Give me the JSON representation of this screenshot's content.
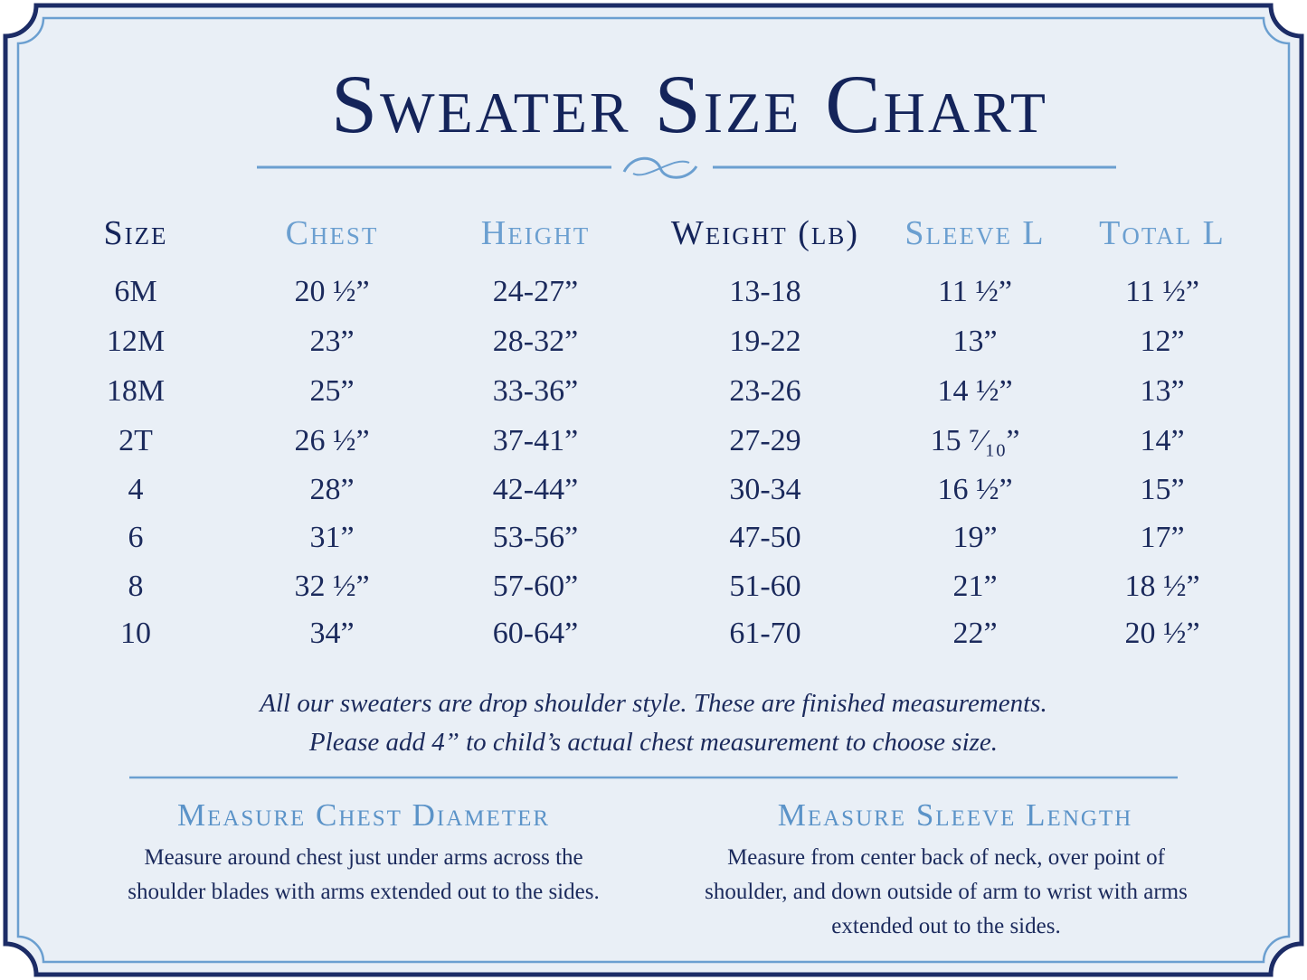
{
  "title": "Sweater Size Chart",
  "table": {
    "header": [
      "Size",
      "Chest",
      "Height",
      "Weight (lb)",
      "Sleeve L",
      "Total L"
    ],
    "rows": [
      [
        "6M",
        "20 ½”",
        "24-27”",
        "13-18",
        "11 ½”",
        "11 ½”"
      ],
      [
        "12M",
        "23”",
        "28-32”",
        "19-22",
        "13”",
        "12”"
      ],
      [
        "18M",
        "25”",
        "33-36”",
        "23-26",
        "14 ½”",
        "13”"
      ],
      [
        "2T",
        "26 ½”",
        "37-41”",
        "27-29",
        "15 ⁷⁄₁₀”",
        "14”"
      ],
      [
        "4",
        "28”",
        "42-44”",
        "30-34",
        "16 ½”",
        "15”"
      ],
      [
        "6",
        "31”",
        "53-56”",
        "47-50",
        "19”",
        "17”"
      ],
      [
        "8",
        "32 ½”",
        "57-60”",
        "51-60",
        "21”",
        "18 ½”"
      ],
      [
        "10",
        "34”",
        "60-64”",
        "61-70",
        "22”",
        "20 ½”"
      ]
    ]
  },
  "notes": [
    "All our sweaters are drop shoulder style. These are finished measurements.",
    "Please add 4” to child’s actual chest measurement to choose size."
  ],
  "sections": [
    {
      "title": "Measure Chest Diameter",
      "body": "Measure around chest just under arms across the shoulder blades with arms extended out to the sides."
    },
    {
      "title": "Measure Sleeve Length",
      "body": "Measure from center back of neck, over point of shoulder, and down outside of arm to wrist with arms extended out to the sides."
    }
  ]
}
